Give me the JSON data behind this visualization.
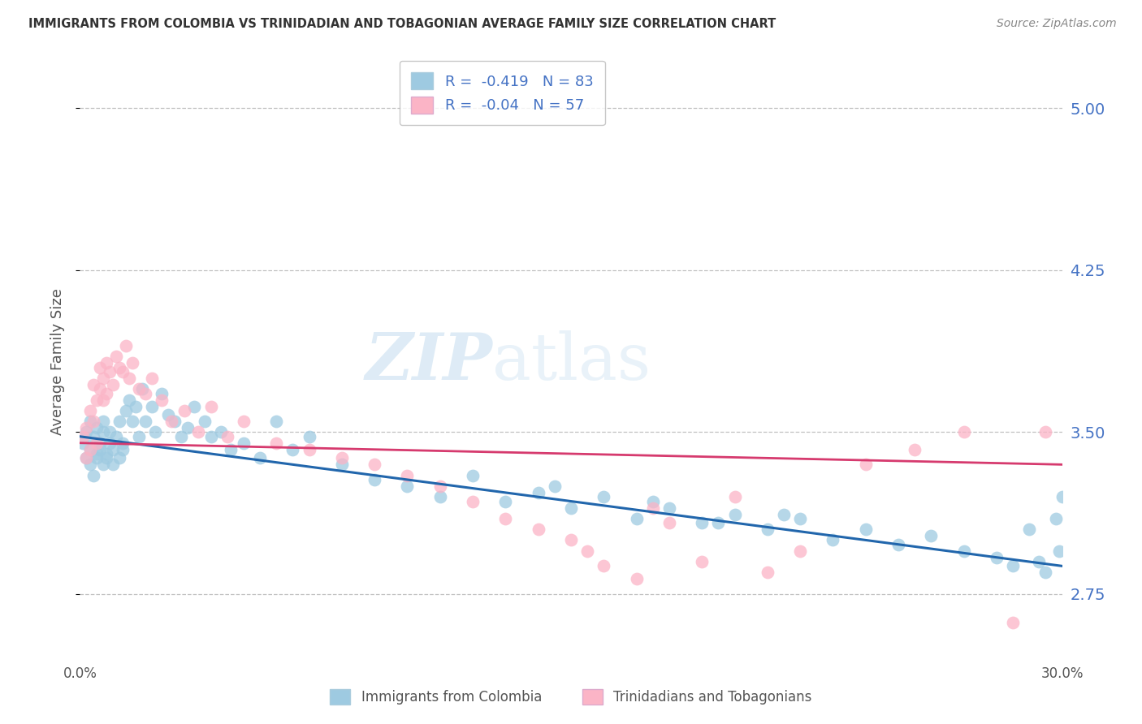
{
  "title": "IMMIGRANTS FROM COLOMBIA VS TRINIDADIAN AND TOBAGONIAN AVERAGE FAMILY SIZE CORRELATION CHART",
  "source": "Source: ZipAtlas.com",
  "ylabel": "Average Family Size",
  "yticks": [
    2.75,
    3.5,
    4.25,
    5.0
  ],
  "xlim": [
    0.0,
    0.3
  ],
  "ylim": [
    2.45,
    5.2
  ],
  "legend_label_blue": "Immigrants from Colombia",
  "legend_label_pink": "Trinidadians and Tobagonians",
  "r_blue": -0.419,
  "n_blue": 83,
  "r_pink": -0.04,
  "n_pink": 57,
  "blue_color": "#9ecae1",
  "pink_color": "#fbb4c6",
  "blue_line_color": "#2166ac",
  "pink_line_color": "#d63a6e",
  "watermark_zip": "ZIP",
  "watermark_atlas": "atlas",
  "blue_x": [
    0.001,
    0.002,
    0.002,
    0.003,
    0.003,
    0.003,
    0.004,
    0.004,
    0.005,
    0.005,
    0.005,
    0.006,
    0.006,
    0.007,
    0.007,
    0.007,
    0.008,
    0.008,
    0.009,
    0.009,
    0.01,
    0.01,
    0.011,
    0.012,
    0.012,
    0.013,
    0.013,
    0.014,
    0.015,
    0.016,
    0.017,
    0.018,
    0.019,
    0.02,
    0.022,
    0.023,
    0.025,
    0.027,
    0.029,
    0.031,
    0.033,
    0.035,
    0.038,
    0.04,
    0.043,
    0.046,
    0.05,
    0.055,
    0.06,
    0.065,
    0.07,
    0.08,
    0.09,
    0.1,
    0.11,
    0.12,
    0.13,
    0.14,
    0.15,
    0.16,
    0.17,
    0.18,
    0.19,
    0.2,
    0.21,
    0.22,
    0.23,
    0.24,
    0.25,
    0.26,
    0.27,
    0.28,
    0.285,
    0.29,
    0.293,
    0.295,
    0.298,
    0.299,
    0.3,
    0.145,
    0.175,
    0.195,
    0.215
  ],
  "blue_y": [
    3.45,
    3.5,
    3.38,
    3.42,
    3.55,
    3.35,
    3.48,
    3.3,
    3.52,
    3.4,
    3.38,
    3.45,
    3.42,
    3.5,
    3.35,
    3.55,
    3.4,
    3.38,
    3.45,
    3.5,
    3.42,
    3.35,
    3.48,
    3.38,
    3.55,
    3.42,
    3.45,
    3.6,
    3.65,
    3.55,
    3.62,
    3.48,
    3.7,
    3.55,
    3.62,
    3.5,
    3.68,
    3.58,
    3.55,
    3.48,
    3.52,
    3.62,
    3.55,
    3.48,
    3.5,
    3.42,
    3.45,
    3.38,
    3.55,
    3.42,
    3.48,
    3.35,
    3.28,
    3.25,
    3.2,
    3.3,
    3.18,
    3.22,
    3.15,
    3.2,
    3.1,
    3.15,
    3.08,
    3.12,
    3.05,
    3.1,
    3.0,
    3.05,
    2.98,
    3.02,
    2.95,
    2.92,
    2.88,
    3.05,
    2.9,
    2.85,
    3.1,
    2.95,
    3.2,
    3.25,
    3.18,
    3.08,
    3.12
  ],
  "pink_x": [
    0.001,
    0.002,
    0.002,
    0.003,
    0.003,
    0.004,
    0.004,
    0.005,
    0.005,
    0.006,
    0.006,
    0.007,
    0.007,
    0.008,
    0.008,
    0.009,
    0.01,
    0.011,
    0.012,
    0.013,
    0.014,
    0.015,
    0.016,
    0.018,
    0.02,
    0.022,
    0.025,
    0.028,
    0.032,
    0.036,
    0.04,
    0.045,
    0.05,
    0.06,
    0.07,
    0.08,
    0.09,
    0.1,
    0.11,
    0.12,
    0.13,
    0.14,
    0.15,
    0.155,
    0.16,
    0.17,
    0.175,
    0.18,
    0.19,
    0.2,
    0.21,
    0.22,
    0.24,
    0.255,
    0.27,
    0.285,
    0.295
  ],
  "pink_y": [
    3.48,
    3.52,
    3.38,
    3.6,
    3.42,
    3.72,
    3.55,
    3.65,
    3.45,
    3.8,
    3.7,
    3.75,
    3.65,
    3.82,
    3.68,
    3.78,
    3.72,
    3.85,
    3.8,
    3.78,
    3.9,
    3.75,
    3.82,
    3.7,
    3.68,
    3.75,
    3.65,
    3.55,
    3.6,
    3.5,
    3.62,
    3.48,
    3.55,
    3.45,
    3.42,
    3.38,
    3.35,
    3.3,
    3.25,
    3.18,
    3.1,
    3.05,
    3.0,
    2.95,
    2.88,
    2.82,
    3.15,
    3.08,
    2.9,
    3.2,
    2.85,
    2.95,
    3.35,
    3.42,
    3.5,
    2.62,
    3.5
  ]
}
